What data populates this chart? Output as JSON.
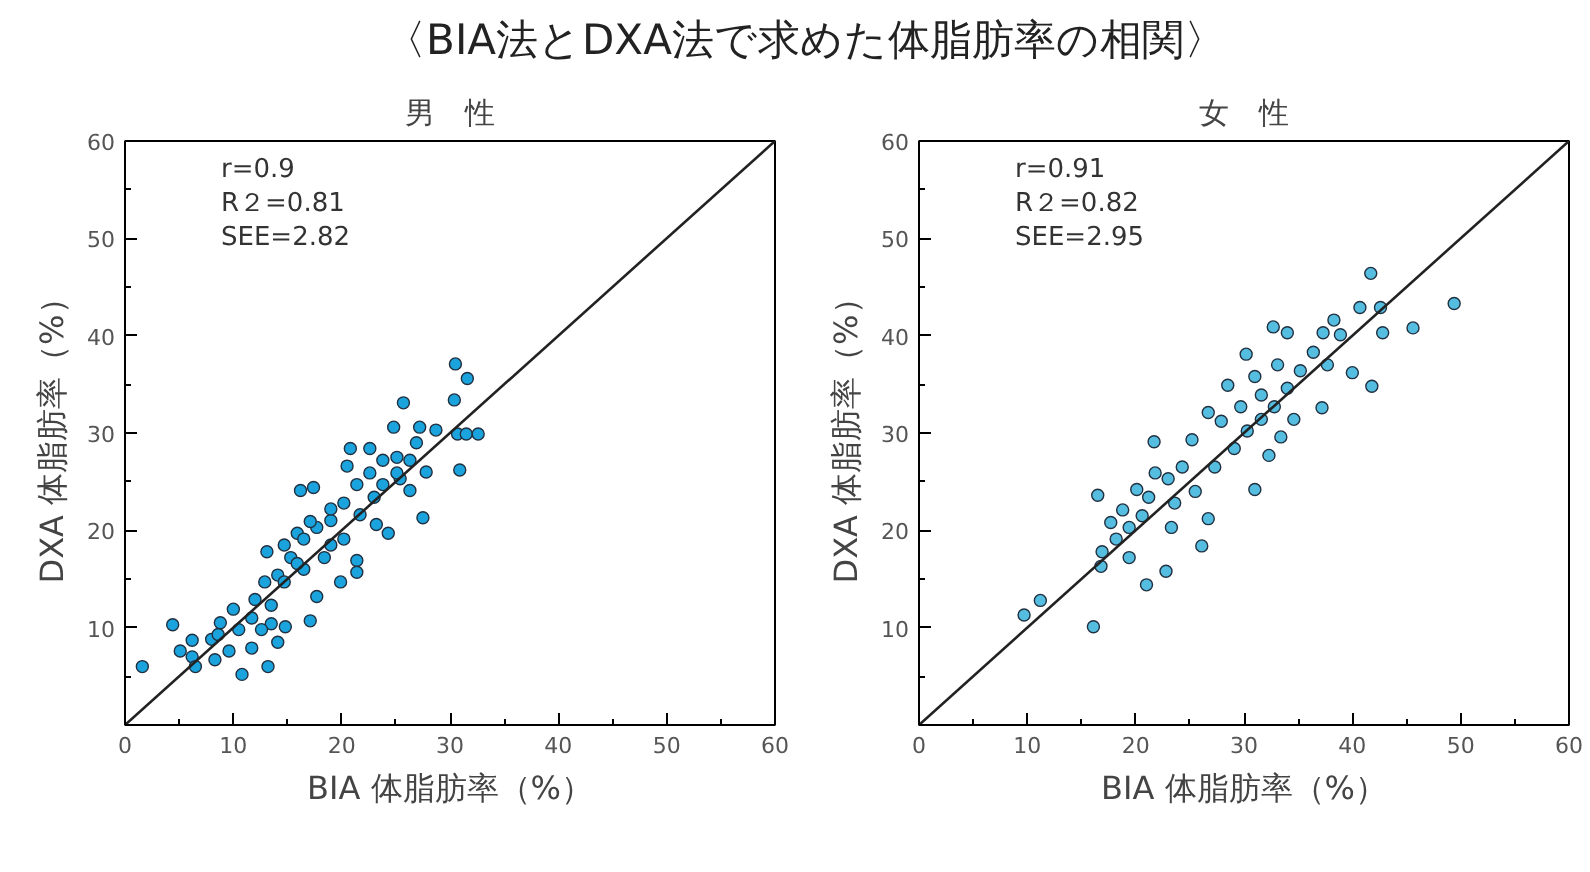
{
  "chart_data": [
    {
      "type": "scatter",
      "title": "〈BIA法とDXA法で求めた体脂肪率の相関〉",
      "subtitle": "男　性",
      "xlabel": "BIA 体脂肪率（%）",
      "ylabel": "DXA 体脂肪率（%）",
      "xlim": [
        0,
        60
      ],
      "ylim": [
        0,
        60
      ],
      "xticks": [
        0,
        10,
        20,
        30,
        40,
        50,
        60
      ],
      "yticks": [
        10,
        20,
        30,
        40,
        50,
        60
      ],
      "grid": false,
      "annotations": [
        "r=0.9",
        "R２=0.81",
        "SEE=2.82"
      ],
      "series": [
        {
          "marker": "circle",
          "color": "#1aa3dc",
          "x": [
            1.6,
            4.4,
            5.1,
            6.2,
            6.5,
            6.2,
            8.0,
            8.6,
            8.8,
            8.3,
            10.0,
            10.8,
            9.6,
            11.7,
            12.0,
            13.2,
            13.1,
            13.5,
            14.8,
            14.1,
            14.7,
            16.2,
            17.1,
            17.7,
            17.4,
            15.9,
            16.5,
            18.4,
            19.0,
            19.9,
            20.2,
            20.8,
            20.5,
            21.4,
            21.4,
            21.7,
            22.6,
            23.0,
            23.2,
            24.3,
            24.8,
            25.7,
            25.1,
            25.4,
            26.3,
            27.2,
            26.9,
            27.5,
            27.8,
            28.7,
            30.5,
            30.4,
            31.6,
            30.9,
            30.7,
            31.5,
            32.6,
            12.9,
            14.1,
            15.3,
            16.5,
            17.7,
            19.0,
            20.2,
            21.4,
            22.6,
            23.8,
            25.1,
            26.3,
            23.8,
            17.1,
            19.0,
            15.9,
            14.7,
            11.7,
            10.5,
            12.6,
            13.5
          ],
          "values": [
            6.0,
            10.3,
            7.6,
            7.0,
            6.0,
            8.7,
            8.8,
            9.3,
            10.5,
            6.7,
            11.9,
            5.2,
            7.6,
            7.9,
            12.9,
            6.0,
            17.8,
            10.4,
            10.1,
            8.5,
            18.5,
            24.1,
            10.7,
            13.2,
            24.4,
            19.7,
            16.0,
            17.2,
            21.0,
            14.7,
            19.1,
            28.4,
            26.6,
            16.9,
            15.7,
            21.6,
            28.4,
            23.4,
            20.6,
            19.7,
            30.6,
            33.1,
            27.5,
            25.3,
            24.1,
            30.6,
            29.0,
            21.3,
            26.0,
            30.3,
            37.1,
            33.4,
            35.6,
            26.2,
            29.9,
            29.9,
            29.9,
            14.7,
            15.4,
            17.2,
            19.1,
            20.3,
            22.2,
            22.8,
            24.7,
            25.9,
            24.7,
            25.9,
            27.2,
            27.2,
            20.9,
            18.5,
            16.6,
            14.7,
            11.0,
            9.8,
            9.8,
            12.3
          ]
        },
        {
          "type": "line",
          "color": "#222222",
          "x": [
            0,
            60
          ],
          "values": [
            0,
            60
          ]
        }
      ]
    },
    {
      "type": "scatter",
      "subtitle": "女　性",
      "xlabel": "BIA 体脂肪率（%）",
      "ylabel": "DXA 体脂肪率（%）",
      "xlim": [
        0,
        60
      ],
      "ylim": [
        0,
        60
      ],
      "xticks": [
        0,
        10,
        20,
        30,
        40,
        50,
        60
      ],
      "yticks": [
        10,
        20,
        30,
        40,
        50,
        60
      ],
      "grid": false,
      "annotations": [
        "r=0.91",
        "R２=0.82",
        "SEE=2.95"
      ],
      "series": [
        {
          "marker": "circle",
          "color": "#55bde0",
          "x": [
            9.7,
            11.2,
            16.1,
            16.5,
            21.0,
            16.8,
            18.8,
            17.7,
            20.1,
            21.7,
            22.8,
            26.1,
            26.7,
            31.0,
            32.3,
            30.2,
            32.7,
            37.2,
            41.8,
            40.0,
            45.6,
            49.4,
            40.7,
            42.6,
            42.8,
            38.3,
            37.3,
            34.0,
            41.7,
            28.5,
            29.7,
            27.9,
            26.7,
            25.2,
            24.3,
            23.0,
            21.8,
            21.2,
            20.6,
            19.4,
            18.2,
            19.4,
            16.9,
            23.3,
            23.6,
            25.5,
            27.3,
            29.1,
            30.3,
            31.6,
            32.8,
            34.0,
            35.2,
            36.4,
            37.7,
            38.9,
            33.1,
            31.0,
            31.6,
            34.6,
            33.4
          ],
          "values": [
            11.3,
            12.8,
            10.1,
            23.6,
            14.4,
            16.3,
            22.1,
            20.8,
            24.2,
            29.1,
            15.8,
            18.4,
            21.2,
            24.2,
            27.7,
            38.1,
            40.9,
            32.6,
            34.8,
            36.2,
            40.8,
            43.3,
            42.9,
            42.9,
            40.3,
            41.6,
            40.3,
            40.3,
            46.4,
            34.9,
            32.7,
            31.2,
            32.1,
            29.3,
            26.5,
            25.3,
            25.9,
            23.4,
            21.5,
            20.3,
            19.1,
            17.2,
            17.8,
            20.3,
            22.8,
            24.0,
            26.5,
            28.4,
            30.2,
            31.4,
            32.7,
            34.6,
            36.4,
            38.3,
            37.0,
            40.1,
            37.0,
            35.8,
            33.9,
            31.4,
            29.6
          ]
        },
        {
          "type": "line",
          "color": "#222222",
          "x": [
            0,
            60
          ],
          "values": [
            0,
            60
          ]
        }
      ]
    }
  ]
}
